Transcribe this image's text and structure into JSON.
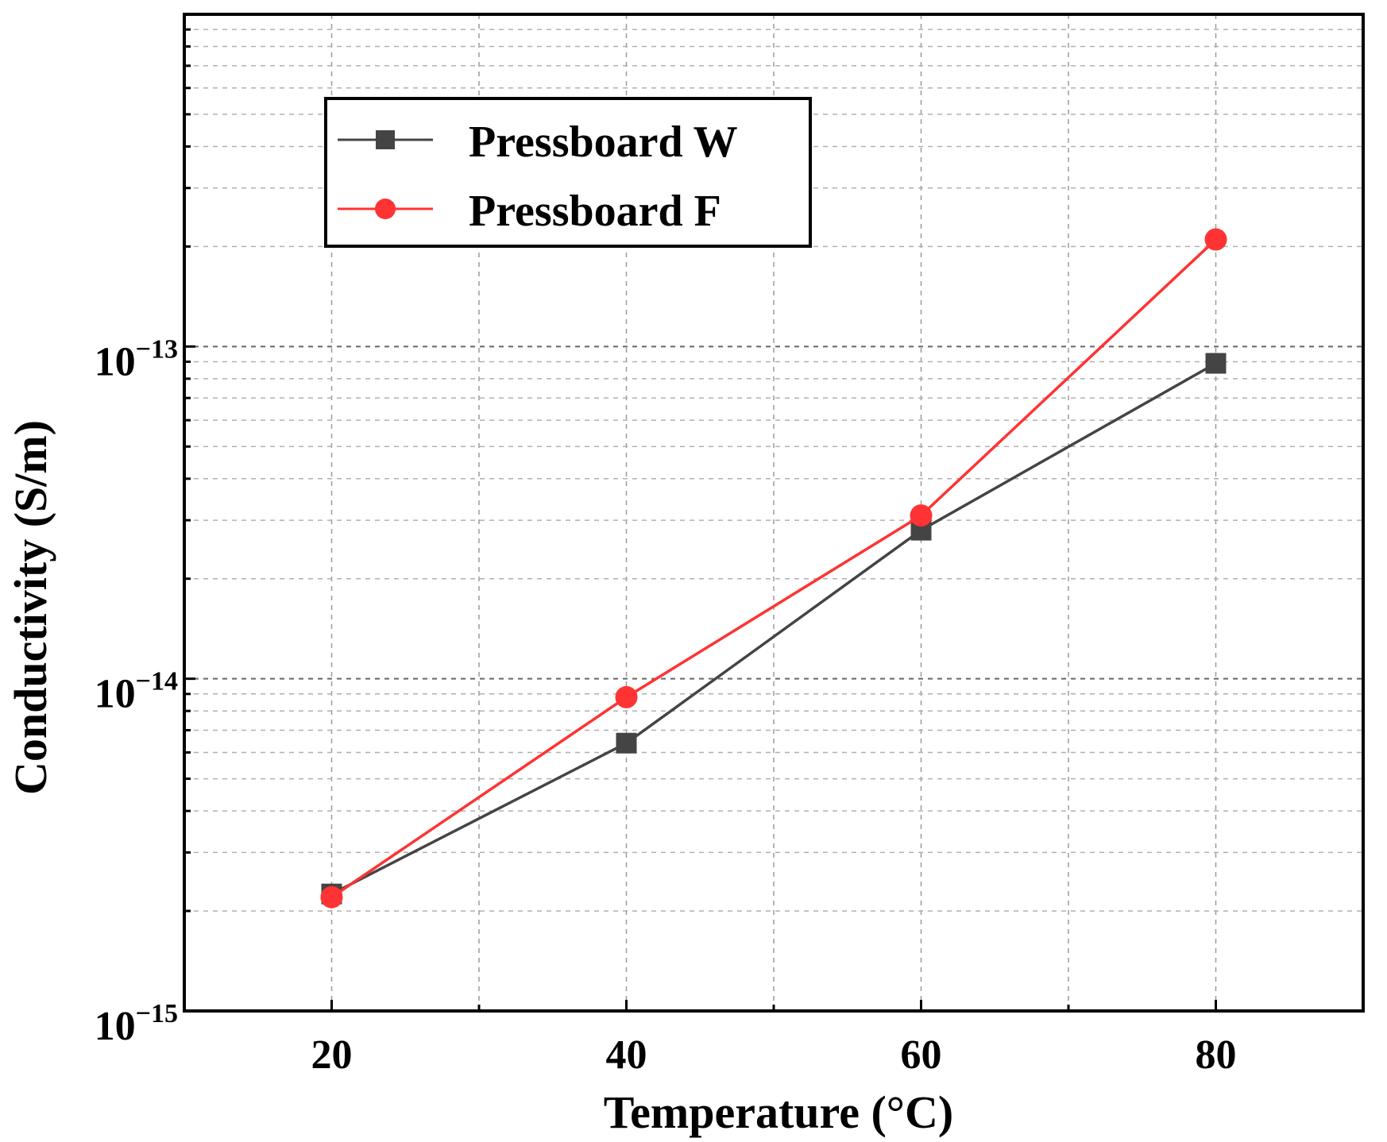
{
  "chart_data": {
    "type": "line",
    "title": "",
    "xlabel": "Temperature (°C)",
    "ylabel": "Conductivity (S/m)",
    "yscale": "log",
    "xlim": [
      10,
      90
    ],
    "ylim": [
      1e-15,
      1e-12
    ],
    "x_ticks": [
      "20",
      "40",
      "60",
      "80"
    ],
    "y_ticks": [
      {
        "base": "10",
        "exp": "−13"
      },
      {
        "base": "10",
        "exp": "−14"
      },
      {
        "base": "10",
        "exp": "−15"
      }
    ],
    "grid": true,
    "legend_position": "top-left",
    "x": [
      20,
      40,
      60,
      80
    ],
    "series": [
      {
        "name": "Pressboard W",
        "color": "#444444",
        "marker": "square",
        "values": [
          2.25e-15,
          6.4e-15,
          2.8e-14,
          8.9e-14
        ]
      },
      {
        "name": "Pressboard F",
        "color": "#ff3333",
        "marker": "circle",
        "values": [
          2.2e-15,
          8.8e-15,
          3.1e-14,
          2.1e-13
        ]
      }
    ]
  }
}
